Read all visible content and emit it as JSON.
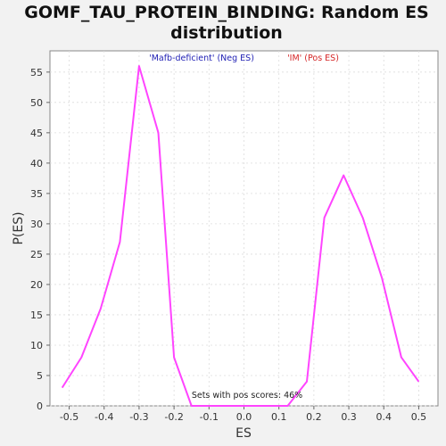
{
  "chart_data": {
    "type": "line",
    "title_lines": [
      "GOMF_TAU_PROTEIN_BINDING: Random ES",
      "distribution"
    ],
    "xlabel": "ES",
    "ylabel": "P(ES)",
    "xlim": [
      -0.555,
      0.555
    ],
    "ylim": [
      0,
      58.5
    ],
    "xticks": [
      -0.5,
      -0.4,
      -0.3,
      -0.2,
      -0.1,
      0.0,
      0.1,
      0.2,
      0.3,
      0.4,
      0.5
    ],
    "xtick_labels": [
      "-0.5",
      "-0.4",
      "-0.3",
      "-0.2",
      "-0.1",
      "0.0",
      "0.1",
      "0.2",
      "0.3",
      "0.4",
      "0.5"
    ],
    "yticks": [
      0,
      5,
      10,
      15,
      20,
      25,
      30,
      35,
      40,
      45,
      50,
      55
    ],
    "ytick_labels": [
      "0",
      "5",
      "10",
      "15",
      "20",
      "25",
      "30",
      "35",
      "40",
      "45",
      "50",
      "55"
    ],
    "grid": true,
    "series": [
      {
        "color": "#ff44ff",
        "x": [
          -0.52,
          -0.465,
          -0.41,
          -0.355,
          -0.3,
          -0.245,
          -0.2,
          -0.15,
          -0.1,
          -0.05,
          0.0,
          0.05,
          0.1,
          0.125,
          0.18,
          0.23,
          0.285,
          0.34,
          0.395,
          0.45,
          0.5
        ],
        "y": [
          3,
          8,
          16,
          27,
          56,
          45,
          8,
          0,
          0,
          0,
          0,
          0,
          0,
          0,
          4,
          31,
          38,
          31,
          21,
          8,
          4
        ]
      }
    ],
    "legend": {
      "placement": "top",
      "entries": [
        {
          "label": "'Mafb-deficient' (Neg ES)",
          "color": "#1f1fb4"
        },
        {
          "label": "'IM' (Pos ES)",
          "color": "#d62728"
        }
      ]
    },
    "annotation": "Sets with pos scores: 46%"
  }
}
